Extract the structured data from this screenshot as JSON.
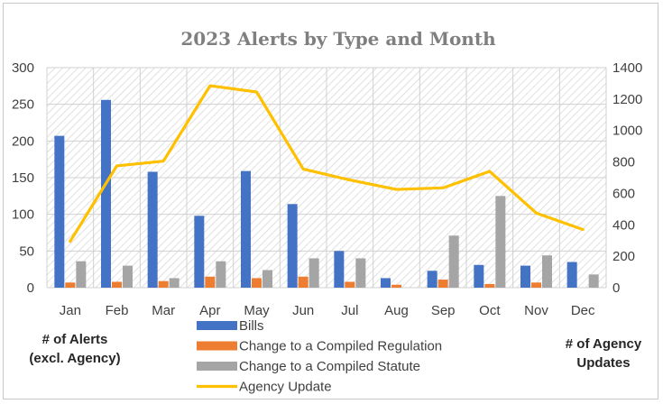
{
  "chart_data": {
    "type": "bar",
    "title": "2023 Alerts by Type and Month",
    "categories": [
      "Jan",
      "Feb",
      "Mar",
      "Apr",
      "May",
      "Jun",
      "Jul",
      "Aug",
      "Sep",
      "Oct",
      "Nov",
      "Dec"
    ],
    "series": [
      {
        "name": "Bills",
        "type": "bar",
        "axis": "left",
        "color": "#4472c4",
        "values": [
          207,
          256,
          158,
          98,
          159,
          114,
          50,
          13,
          23,
          31,
          30,
          35
        ]
      },
      {
        "name": "Change to a Compiled Regulation",
        "type": "bar",
        "axis": "left",
        "color": "#ed7d31",
        "values": [
          7,
          8,
          9,
          15,
          13,
          15,
          8,
          4,
          11,
          5,
          7,
          0
        ]
      },
      {
        "name": "Change to a Compiled Statute",
        "type": "bar",
        "axis": "left",
        "color": "#a5a5a5",
        "values": [
          36,
          30,
          13,
          36,
          24,
          40,
          40,
          0,
          71,
          125,
          44,
          18
        ]
      },
      {
        "name": "Agency Update",
        "type": "line",
        "axis": "right",
        "color": "#ffc000",
        "values": [
          295,
          775,
          805,
          1285,
          1245,
          755,
          685,
          625,
          635,
          740,
          475,
          370
        ]
      }
    ],
    "y_left": {
      "label": "# of Alerts (excl. Agency)",
      "min": 0,
      "max": 300,
      "ticks": [
        "0",
        "50",
        "100",
        "150",
        "200",
        "250",
        "300"
      ]
    },
    "y_right": {
      "label": "# of Agency Updates",
      "min": 0,
      "max": 1400,
      "ticks": [
        "0",
        "200",
        "400",
        "600",
        "800",
        "1000",
        "1200",
        "1400"
      ]
    },
    "grid": true,
    "legend": "bottom-center"
  },
  "axis_notes": {
    "left_line1": "# of Alerts",
    "left_line2": "(excl. Agency)",
    "right_line1": "# of Agency",
    "right_line2": "Updates"
  }
}
